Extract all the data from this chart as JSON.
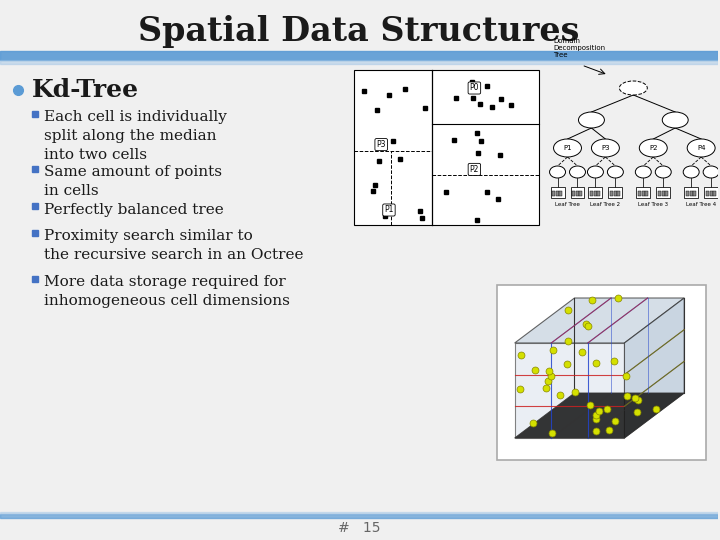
{
  "title": "Spatial Data Structures",
  "title_fontsize": 24,
  "background_color": "#f0f0f0",
  "bullet_color": "#5b9bd5",
  "bullet_main": "Kd-Tree",
  "bullet_main_fontsize": 18,
  "sub_bullets": [
    "Each cell is individually\nsplit along the median\ninto two cells",
    "Same amount of points\nin cells",
    "Perfectly balanced tree",
    "Proximity search similar to\nthe recursive search in an Octree",
    "More data storage required for\ninhomogeneous cell dimensions"
  ],
  "sub_bullet_fontsize": 11,
  "sub_bullet_color": "#4472c4",
  "page_number": "#   15",
  "page_num_fontsize": 10,
  "divider_color": "#5b9bd5",
  "text_color": "#1a1a1a"
}
